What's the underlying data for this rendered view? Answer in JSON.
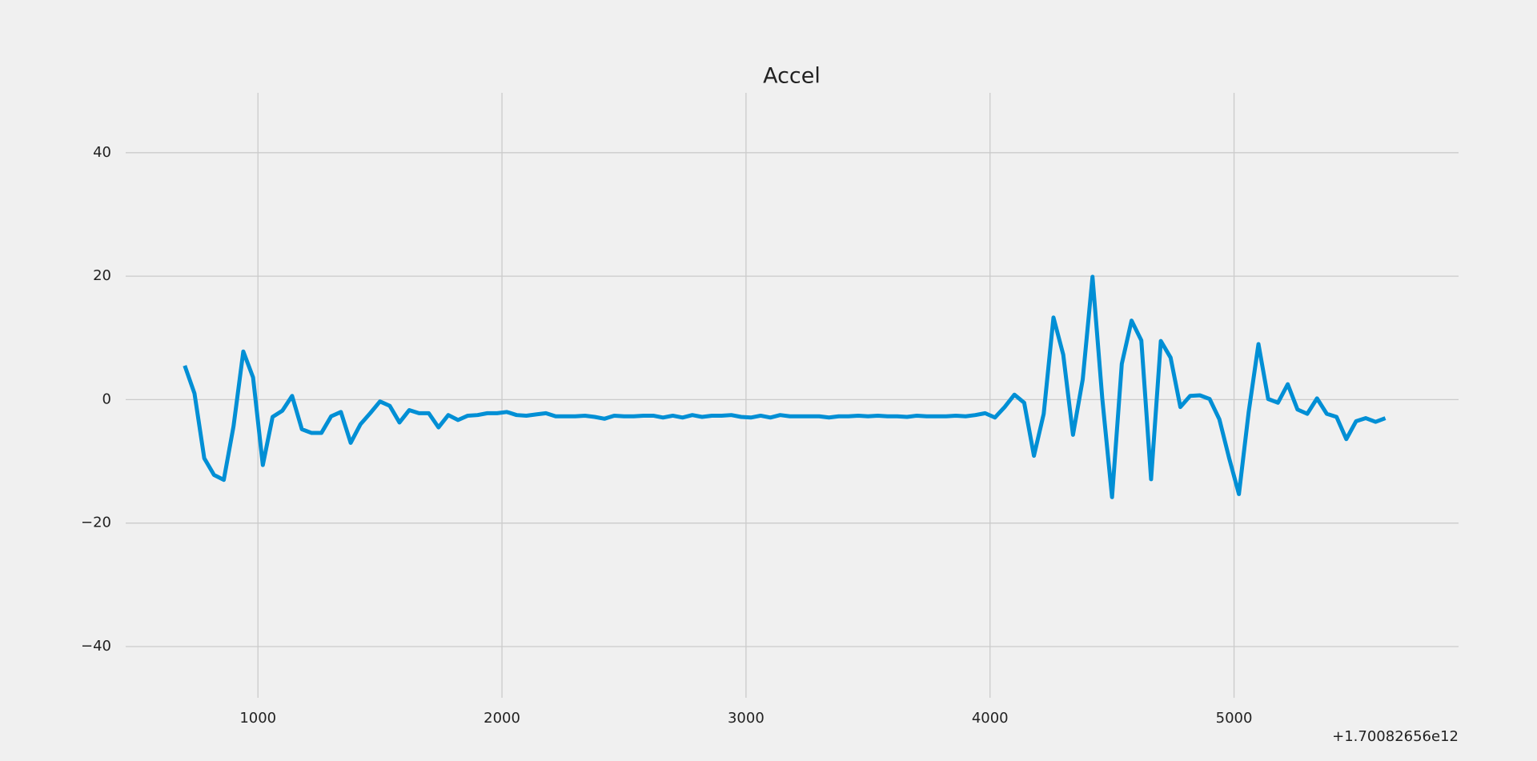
{
  "chart_data": {
    "type": "line",
    "title": "Accel",
    "x_offset_label": "+1.70082656e12",
    "color": "#008fd5",
    "grid": true,
    "x": [
      700,
      740,
      780,
      820,
      860,
      900,
      940,
      980,
      1020,
      1060,
      1100,
      1140,
      1180,
      1220,
      1260,
      1300,
      1340,
      1380,
      1420,
      1460,
      1500,
      1540,
      1580,
      1620,
      1660,
      1700,
      1740,
      1780,
      1820,
      1860,
      1900,
      1940,
      1980,
      2020,
      2060,
      2100,
      2140,
      2180,
      2220,
      2260,
      2300,
      2340,
      2380,
      2420,
      2460,
      2500,
      2540,
      2580,
      2620,
      2660,
      2700,
      2740,
      2780,
      2820,
      2860,
      2900,
      2940,
      2980,
      3020,
      3060,
      3100,
      3140,
      3180,
      3220,
      3260,
      3300,
      3340,
      3380,
      3420,
      3460,
      3500,
      3540,
      3580,
      3620,
      3660,
      3700,
      3740,
      3780,
      3820,
      3860,
      3900,
      3940,
      3980,
      4020,
      4060,
      4100,
      4140,
      4180,
      4220,
      4260,
      4300,
      4340,
      4380,
      4420,
      4460,
      4500,
      4540,
      4580,
      4620,
      4660,
      4700,
      4740,
      4780,
      4820,
      4860,
      4900,
      4940,
      4980,
      5020,
      5060,
      5100,
      5140,
      5180,
      5220,
      5260,
      5300,
      5340,
      5380,
      5420,
      5460,
      5500,
      5540,
      5580,
      5620
    ],
    "values": [
      5.5,
      1,
      -9.5,
      -12.2,
      -13,
      -4.3,
      7.8,
      3.6,
      -10.6,
      -2.8,
      -1.8,
      0.6,
      -4.8,
      -5.4,
      -5.4,
      -2.7,
      -2,
      -7,
      -4,
      -2.2,
      -0.3,
      -1,
      -3.7,
      -1.7,
      -2.2,
      -2.2,
      -4.5,
      -2.5,
      -3.3,
      -2.6,
      -2.5,
      -2.2,
      -2.2,
      -2,
      -2.5,
      -2.6,
      -2.4,
      -2.2,
      -2.7,
      -2.7,
      -2.7,
      -2.6,
      -2.8,
      -3.1,
      -2.6,
      -2.7,
      -2.7,
      -2.6,
      -2.6,
      -2.9,
      -2.6,
      -2.9,
      -2.5,
      -2.8,
      -2.6,
      -2.6,
      -2.5,
      -2.8,
      -2.9,
      -2.6,
      -2.9,
      -2.5,
      -2.7,
      -2.7,
      -2.7,
      -2.7,
      -2.9,
      -2.7,
      -2.7,
      -2.6,
      -2.7,
      -2.6,
      -2.7,
      -2.7,
      -2.8,
      -2.6,
      -2.7,
      -2.7,
      -2.7,
      -2.6,
      -2.7,
      -2.5,
      -2.2,
      -2.9,
      -1.2,
      0.8,
      -0.5,
      -9.1,
      -2.3,
      13.3,
      7.3,
      -5.7,
      3.3,
      19.9,
      0.2,
      -15.8,
      5.8,
      12.8,
      9.6,
      -12.9,
      9.5,
      6.8,
      -1.2,
      0.6,
      0.7,
      0.1,
      -3.2,
      -9.5,
      -15.3,
      -2,
      9,
      0.1,
      -0.5,
      2.5,
      -1.6,
      -2.3,
      0.2,
      -2.3,
      -2.8,
      -6.4,
      -3.5,
      -3,
      -3.6,
      -3
    ],
    "xlim": [
      458,
      5920
    ],
    "ylim": [
      -48.3,
      49.7
    ],
    "xticks": [
      1000,
      2000,
      3000,
      4000,
      5000
    ],
    "yticks": [
      {
        "value": -40,
        "label": "−40"
      },
      {
        "value": -20,
        "label": "−20"
      },
      0,
      20,
      40
    ]
  }
}
